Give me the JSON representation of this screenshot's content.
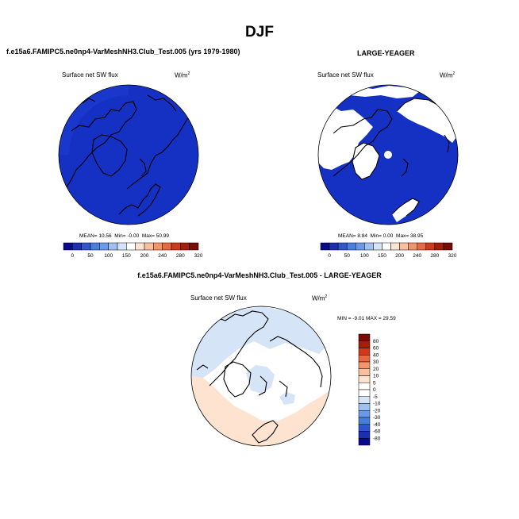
{
  "figure": {
    "title": "DJF"
  },
  "panel1": {
    "title": "f.e15a6.FAMIPC5.ne0np4-VarMeshNH3.Club_Test.005 (yrs 1979-1980)",
    "variable": "Surface net SW flux",
    "units": "W/m",
    "units_sup": "2",
    "mean_label": "MEAN=",
    "mean": "10.56",
    "min_label": "Min=",
    "min": "-0.00",
    "max_label": "Max=",
    "max": "50.99"
  },
  "panel2": {
    "title": "LARGE-YEAGER",
    "variable": "Surface net SW flux",
    "units": "W/m",
    "units_sup": "2",
    "mean_label": "MEAN=",
    "mean": "8.84",
    "min_label": "Min=",
    "min": "0.00",
    "max_label": "Max=",
    "max": "38.95"
  },
  "panel3": {
    "title": "f.e15a6.FAMIPC5.ne0np4-VarMeshNH3.Club_Test.005 - LARGE-YEAGER",
    "variable": "Surface net SW flux",
    "units": "W/m",
    "units_sup": "2",
    "stats": "MIN = -9.01 MAX = 29.59"
  },
  "colorbar_abs": {
    "labels": [
      "0",
      "50",
      "100",
      "150",
      "200",
      "240",
      "280",
      "320"
    ],
    "colors": [
      "#0a0a8c",
      "#1b2fb0",
      "#2f56cf",
      "#4a7de0",
      "#6a9ae8",
      "#9fc0f0",
      "#d6e4f7",
      "#ffffff",
      "#fde3d0",
      "#f9bf9e",
      "#f3946c",
      "#e8683f",
      "#cf3a1a",
      "#a31e0c",
      "#7a0c06"
    ]
  },
  "colorbar_diff": {
    "labels": [
      "80",
      "60",
      "40",
      "30",
      "20",
      "10",
      "5",
      "0",
      "-5",
      "-10",
      "-20",
      "-30",
      "-40",
      "-60",
      "-80"
    ],
    "colors": [
      "#7a0c06",
      "#a31e0c",
      "#cf3a1a",
      "#e8683f",
      "#f3946c",
      "#f9bf9e",
      "#fde3d0",
      "#ffffff",
      "#ffffff",
      "#d6e4f7",
      "#9fc0f0",
      "#6a9ae8",
      "#4a7de0",
      "#2f56cf",
      "#1b2fb0",
      "#0a0a8c"
    ]
  }
}
